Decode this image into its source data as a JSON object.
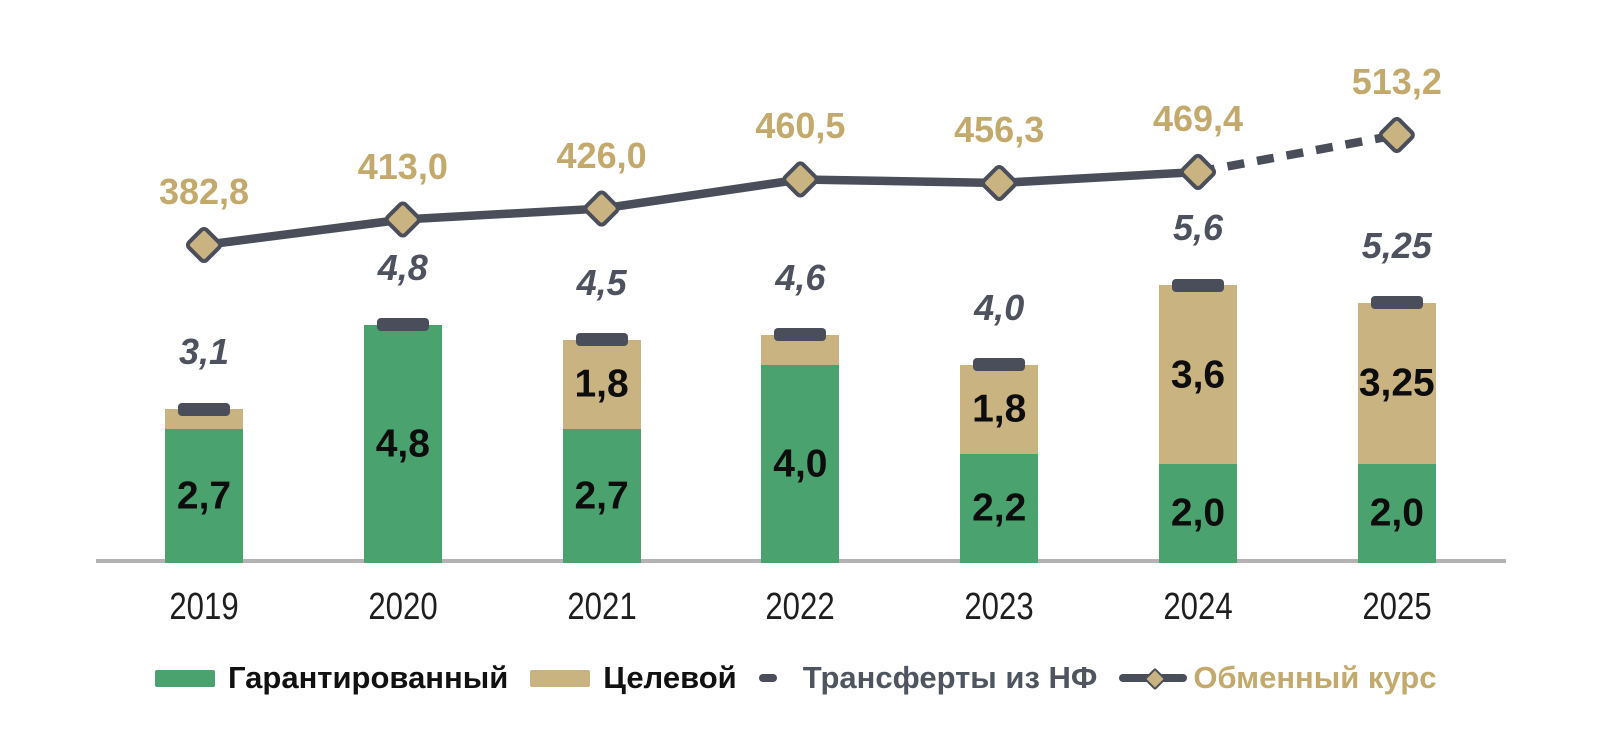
{
  "chart_data": {
    "type": "bar",
    "subtype": "stacked-bar-with-line",
    "title": "",
    "categories": [
      "2019",
      "2020",
      "2021",
      "2022",
      "2023",
      "2024",
      "2025"
    ],
    "series": [
      {
        "name": "Гарантированный",
        "type": "bar",
        "color": "#4aa36e",
        "values": [
          2.7,
          4.8,
          2.7,
          4.0,
          2.2,
          2.0,
          2.0
        ],
        "labels": [
          "2,7",
          "4,8",
          "2,7",
          "4,0",
          "2,2",
          "2,0",
          "2,0"
        ]
      },
      {
        "name": "Целевой",
        "type": "bar",
        "color": "#c9b381",
        "values": [
          0.4,
          0,
          1.8,
          0.6,
          1.8,
          3.6,
          3.25
        ],
        "labels": [
          "",
          "",
          "1,8",
          "",
          "1,8",
          "3,6",
          "3,25"
        ]
      },
      {
        "name": "Трансферты из НФ",
        "type": "tick-marker",
        "color": "#4a4e5a",
        "position": "stack-top"
      },
      {
        "name": "Обменный курс",
        "type": "line",
        "line_color": "#4a4e5a",
        "marker_color": "#c9b381",
        "label_color": "#c3aa6c",
        "values": [
          382.8,
          413.0,
          426.0,
          460.5,
          456.3,
          469.4,
          513.2
        ],
        "labels": [
          "382,8",
          "413,0",
          "426,0",
          "460,5",
          "456,3",
          "469,4",
          "513,2"
        ],
        "dashed_segment_from": "2024"
      }
    ],
    "stack_totals": {
      "values": [
        3.1,
        4.8,
        4.5,
        4.6,
        4.0,
        5.6,
        5.25
      ],
      "labels": [
        "3,1",
        "4,8",
        "4,5",
        "4,6",
        "4,0",
        "5,6",
        "5,25"
      ]
    },
    "axes": {
      "x_labels_visible": true,
      "y_axis_visible": false,
      "gridlines": false,
      "baseline_color": "#b3b3b3"
    },
    "legend_position": "bottom"
  },
  "legend": {
    "items": [
      {
        "label": "Гарантированный",
        "color": "#4aa36e"
      },
      {
        "label": "Целевой",
        "color": "#c9b381"
      },
      {
        "label": "Трансферты из НФ",
        "color": "#4a4e5a"
      },
      {
        "label": "Обменный курс",
        "color": "#c3aa6c"
      }
    ]
  }
}
